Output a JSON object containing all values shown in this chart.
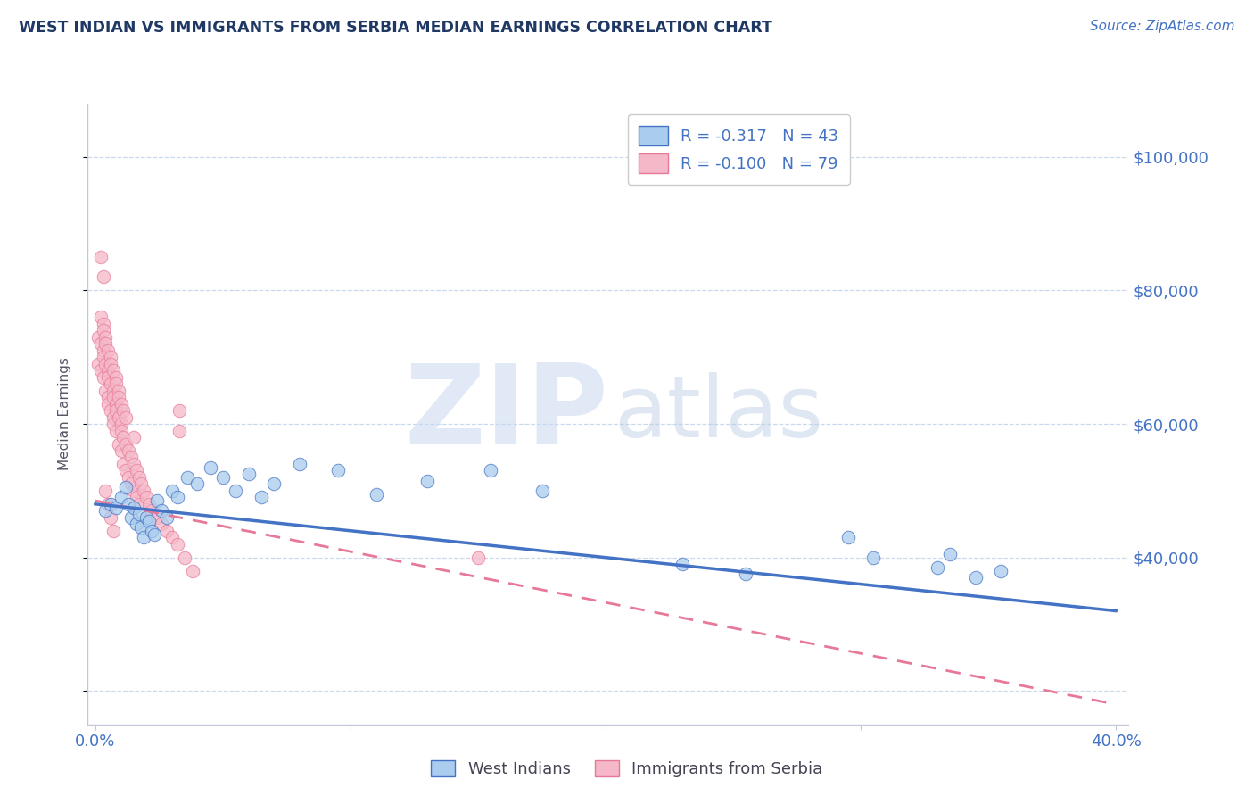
{
  "title": "WEST INDIAN VS IMMIGRANTS FROM SERBIA MEDIAN EARNINGS CORRELATION CHART",
  "source_text": "Source: ZipAtlas.com",
  "ylabel": "Median Earnings",
  "xlim": [
    -0.003,
    0.405
  ],
  "ylim": [
    15000,
    108000
  ],
  "yticks": [
    20000,
    40000,
    60000,
    80000,
    100000
  ],
  "ytick_labels": [
    "",
    "$40,000",
    "$60,000",
    "$80,000",
    "$100,000"
  ],
  "xticks": [
    0.0,
    0.1,
    0.2,
    0.3,
    0.4
  ],
  "xtick_labels": [
    "0.0%",
    "",
    "",
    "",
    "40.0%"
  ],
  "series1_label": "West Indians",
  "series1_R": "-0.317",
  "series1_N": "43",
  "series1_color": "#aaccee",
  "series1_line_color": "#4472c4",
  "series2_label": "Immigrants from Serbia",
  "series2_R": "-0.100",
  "series2_N": "79",
  "series2_color": "#f5b8c8",
  "series2_line_color": "#e87898",
  "title_color": "#1f3864",
  "axis_color": "#4472c4",
  "grid_color": "#c8d8ee",
  "background_color": "#ffffff",
  "line1_x0": 0.0,
  "line1_y0": 48000,
  "line1_x1": 0.4,
  "line1_y1": 32000,
  "line2_x0": 0.0,
  "line2_y0": 48500,
  "line2_x1": 0.4,
  "line2_y1": 18000,
  "scatter1_x": [
    0.004,
    0.006,
    0.008,
    0.01,
    0.012,
    0.013,
    0.014,
    0.015,
    0.016,
    0.017,
    0.018,
    0.019,
    0.02,
    0.021,
    0.022,
    0.023,
    0.024,
    0.026,
    0.028,
    0.03,
    0.032,
    0.036,
    0.04,
    0.045,
    0.05,
    0.055,
    0.06,
    0.065,
    0.07,
    0.08,
    0.095,
    0.11,
    0.13,
    0.155,
    0.175,
    0.23,
    0.255,
    0.295,
    0.305,
    0.33,
    0.335,
    0.345,
    0.355
  ],
  "scatter1_y": [
    47000,
    48000,
    47500,
    49000,
    50500,
    48000,
    46000,
    47500,
    45000,
    46500,
    44500,
    43000,
    46000,
    45500,
    44000,
    43500,
    48500,
    47000,
    46000,
    50000,
    49000,
    52000,
    51000,
    53500,
    52000,
    50000,
    52500,
    49000,
    51000,
    54000,
    53000,
    49500,
    51500,
    53000,
    50000,
    39000,
    37500,
    43000,
    40000,
    38500,
    40500,
    37000,
    38000
  ],
  "scatter2_x": [
    0.001,
    0.001,
    0.002,
    0.002,
    0.002,
    0.003,
    0.003,
    0.003,
    0.003,
    0.003,
    0.004,
    0.004,
    0.004,
    0.004,
    0.005,
    0.005,
    0.005,
    0.005,
    0.005,
    0.006,
    0.006,
    0.006,
    0.006,
    0.007,
    0.007,
    0.007,
    0.007,
    0.007,
    0.008,
    0.008,
    0.008,
    0.008,
    0.008,
    0.009,
    0.009,
    0.009,
    0.009,
    0.01,
    0.01,
    0.01,
    0.01,
    0.011,
    0.011,
    0.011,
    0.012,
    0.012,
    0.012,
    0.013,
    0.013,
    0.014,
    0.014,
    0.015,
    0.015,
    0.015,
    0.016,
    0.016,
    0.017,
    0.017,
    0.018,
    0.019,
    0.02,
    0.021,
    0.022,
    0.024,
    0.026,
    0.028,
    0.03,
    0.032,
    0.035,
    0.038,
    0.002,
    0.003,
    0.004,
    0.005,
    0.006,
    0.007,
    0.033,
    0.033,
    0.15
  ],
  "scatter2_y": [
    73000,
    69000,
    76000,
    72000,
    68000,
    75000,
    71000,
    67000,
    74000,
    70000,
    73000,
    69000,
    65000,
    72000,
    68000,
    64000,
    71000,
    67000,
    63000,
    70000,
    66000,
    62000,
    69000,
    65000,
    61000,
    68000,
    64000,
    60000,
    67000,
    63000,
    59000,
    66000,
    62000,
    65000,
    61000,
    57000,
    64000,
    60000,
    56000,
    63000,
    59000,
    58000,
    54000,
    62000,
    57000,
    53000,
    61000,
    56000,
    52000,
    55000,
    51000,
    54000,
    50000,
    58000,
    53000,
    49000,
    52000,
    48000,
    51000,
    50000,
    49000,
    48000,
    47000,
    46000,
    45000,
    44000,
    43000,
    42000,
    40000,
    38000,
    85000,
    82000,
    50000,
    48000,
    46000,
    44000,
    62000,
    59000,
    40000
  ]
}
